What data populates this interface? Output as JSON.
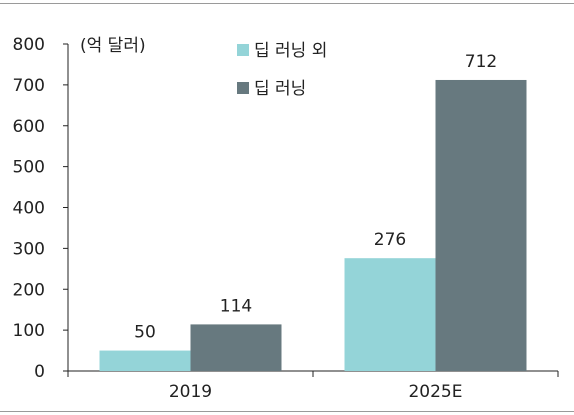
{
  "chart_data": {
    "type": "bar",
    "unit": "(억 달러)",
    "categories": [
      "2019",
      "2025E"
    ],
    "series": [
      {
        "name": "딥 러닝 외",
        "values": [
          50,
          276
        ],
        "color": "#94d4d8"
      },
      {
        "name": "딥 러닝",
        "values": [
          114,
          712
        ],
        "color": "#67797f"
      }
    ],
    "y_ticks": [
      "0",
      "100",
      "200",
      "300",
      "400",
      "500",
      "600",
      "700",
      "800"
    ],
    "ylim": [
      0,
      800
    ],
    "grid": false,
    "legend_position": "top-center",
    "data_labels": true
  },
  "colors": {
    "axis": "#222222",
    "frame": "#9a9a9a"
  }
}
